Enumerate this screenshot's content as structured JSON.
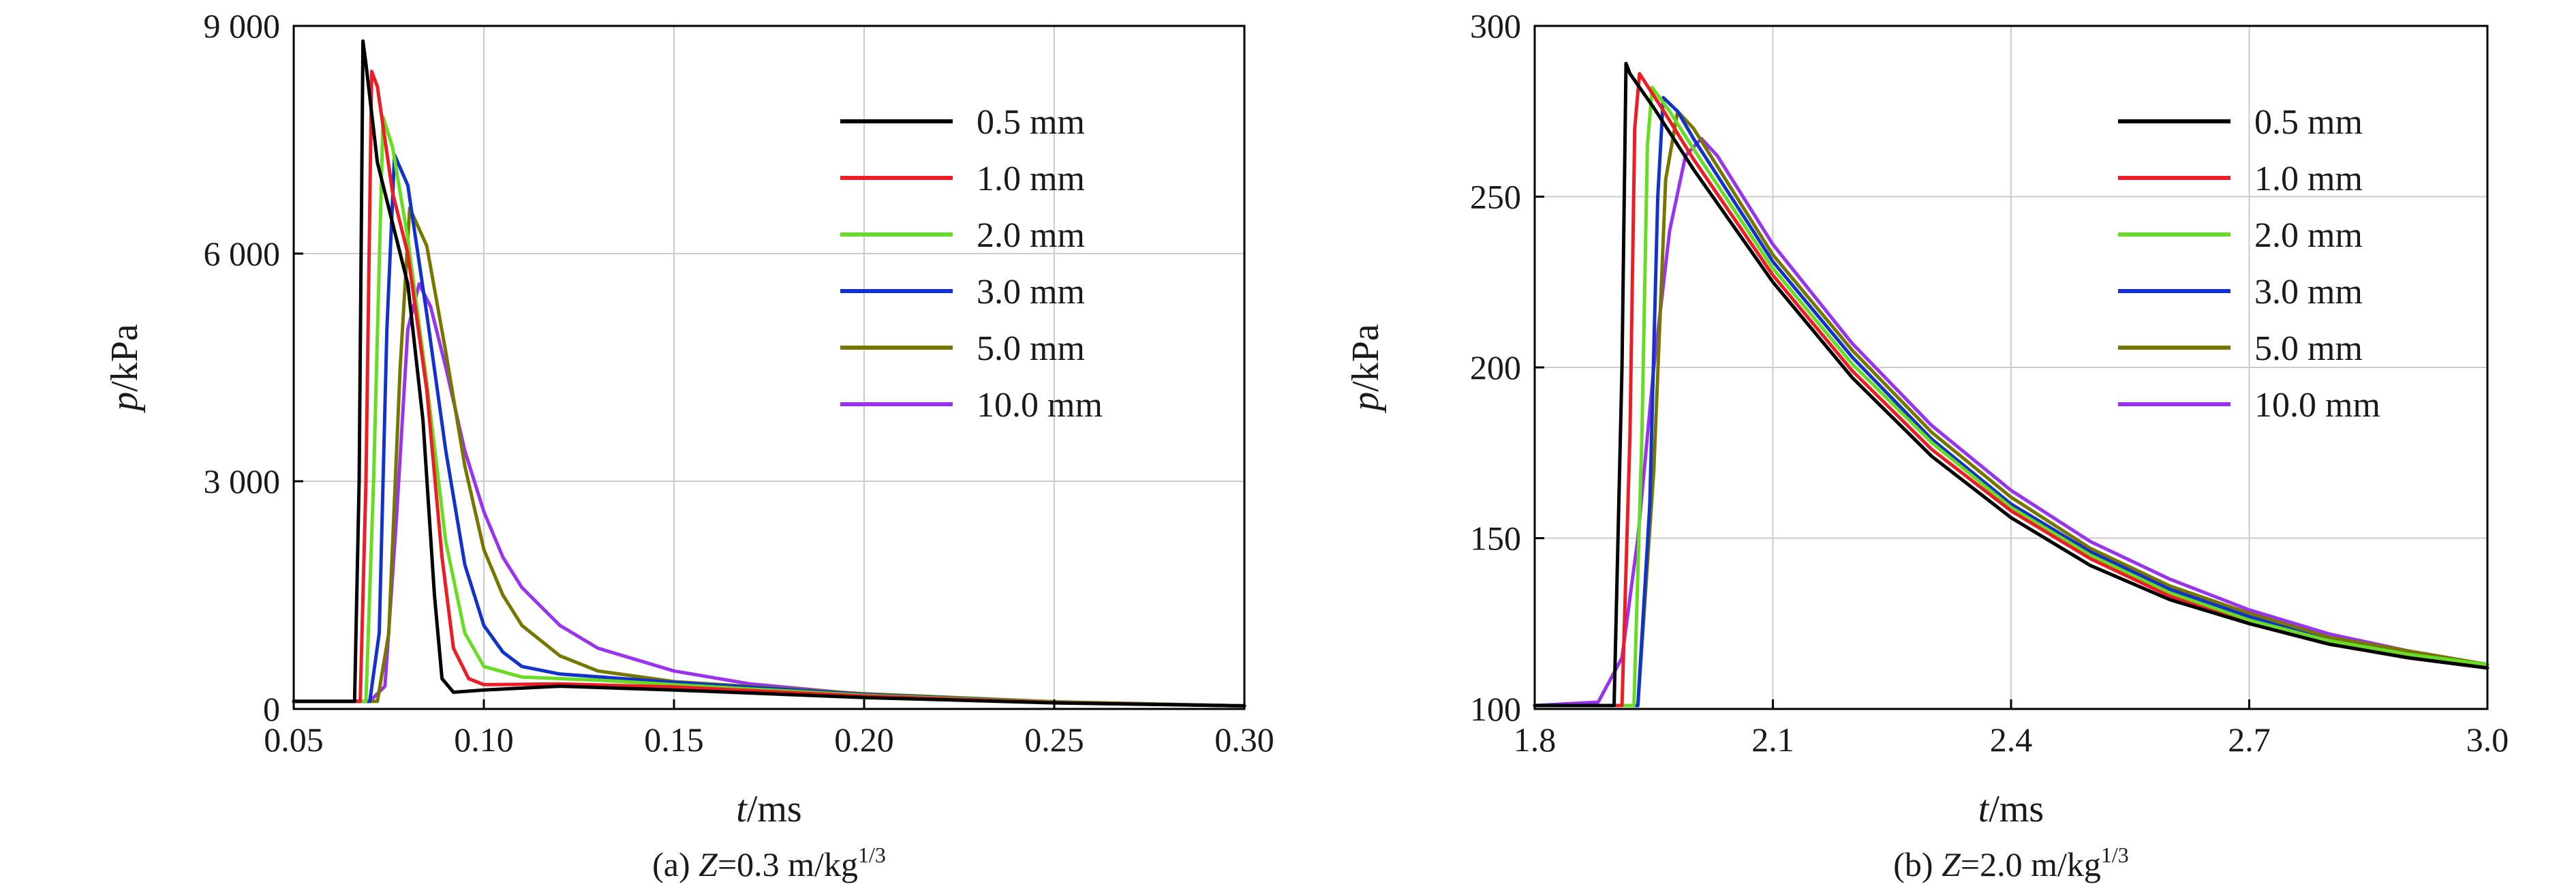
{
  "legend_labels": [
    "0.5 mm",
    "1.0 mm",
    "2.0 mm",
    "3.0 mm",
    "5.0 mm",
    "10.0 mm"
  ],
  "series_colors": [
    "#000000",
    "#ee1c25",
    "#66dd22",
    "#1133cc",
    "#777700",
    "#9933ee"
  ],
  "chart_data": [
    {
      "type": "line",
      "caption": {
        "prefix": "(a) ",
        "var": "Z",
        "value": "=0.3 m/kg",
        "exp": "1/3"
      },
      "xlabel": {
        "var": "t",
        "unit": "/ms"
      },
      "ylabel": {
        "var": "p",
        "unit": "/kPa"
      },
      "xlim": [
        0.05,
        0.3
      ],
      "ylim": [
        0,
        9000
      ],
      "xticks": [
        0.05,
        0.1,
        0.15,
        0.2,
        0.25,
        0.3
      ],
      "xtick_labels": [
        "0.05",
        "0.10",
        "0.15",
        "0.20",
        "0.25",
        "0.30"
      ],
      "yticks": [
        0,
        3000,
        6000,
        9000
      ],
      "ytick_labels": [
        "0",
        "3 000",
        "6 000",
        "9 000"
      ],
      "grid": true,
      "legend_position": "top-right",
      "series": [
        {
          "name": "0.5 mm",
          "x": [
            0.05,
            0.066,
            0.0672,
            0.0682,
            0.069,
            0.072,
            0.076,
            0.08,
            0.084,
            0.087,
            0.089,
            0.092,
            0.1,
            0.12,
            0.15,
            0.2,
            0.25,
            0.3
          ],
          "y": [
            100,
            100,
            3000,
            8800,
            8500,
            7200,
            6400,
            5600,
            3800,
            1500,
            400,
            220,
            250,
            300,
            250,
            150,
            80,
            40
          ]
        },
        {
          "name": "1.0 mm",
          "x": [
            0.05,
            0.0675,
            0.069,
            0.0705,
            0.072,
            0.076,
            0.08,
            0.085,
            0.089,
            0.092,
            0.096,
            0.1,
            0.12,
            0.15,
            0.2,
            0.25,
            0.3
          ],
          "y": [
            100,
            100,
            3000,
            8400,
            8200,
            6800,
            6000,
            4200,
            2000,
            800,
            400,
            320,
            330,
            290,
            170,
            85,
            40
          ]
        },
        {
          "name": "2.0 mm",
          "x": [
            0.05,
            0.069,
            0.071,
            0.0735,
            0.076,
            0.08,
            0.085,
            0.09,
            0.095,
            0.1,
            0.11,
            0.13,
            0.15,
            0.2,
            0.25,
            0.3
          ],
          "y": [
            100,
            100,
            3000,
            7800,
            7400,
            6200,
            4300,
            2200,
            1000,
            560,
            420,
            380,
            320,
            180,
            90,
            40
          ]
        },
        {
          "name": "3.0 mm",
          "x": [
            0.05,
            0.07,
            0.0725,
            0.0745,
            0.0765,
            0.08,
            0.085,
            0.09,
            0.095,
            0.1,
            0.105,
            0.11,
            0.12,
            0.15,
            0.2,
            0.25,
            0.3
          ],
          "y": [
            100,
            100,
            1000,
            5000,
            7300,
            6900,
            5200,
            3400,
            1900,
            1100,
            750,
            560,
            460,
            350,
            190,
            90,
            40
          ]
        },
        {
          "name": "5.0 mm",
          "x": [
            0.05,
            0.072,
            0.075,
            0.078,
            0.0805,
            0.085,
            0.09,
            0.095,
            0.1,
            0.105,
            0.11,
            0.12,
            0.13,
            0.15,
            0.2,
            0.25,
            0.3
          ],
          "y": [
            100,
            100,
            1000,
            4500,
            6600,
            6100,
            4700,
            3200,
            2100,
            1500,
            1100,
            700,
            500,
            360,
            200,
            95,
            40
          ]
        },
        {
          "name": "10.0 mm",
          "x": [
            0.05,
            0.07,
            0.074,
            0.077,
            0.08,
            0.083,
            0.086,
            0.09,
            0.095,
            0.1,
            0.105,
            0.11,
            0.12,
            0.13,
            0.15,
            0.17,
            0.2,
            0.25,
            0.3
          ],
          "y": [
            100,
            100,
            300,
            2500,
            5000,
            5600,
            5300,
            4500,
            3400,
            2600,
            2000,
            1600,
            1100,
            800,
            500,
            330,
            190,
            90,
            40
          ]
        }
      ]
    },
    {
      "type": "line",
      "caption": {
        "prefix": "(b) ",
        "var": "Z",
        "value": "=2.0 m/kg",
        "exp": "1/3"
      },
      "xlabel": {
        "var": "t",
        "unit": "/ms"
      },
      "ylabel": {
        "var": "p",
        "unit": "/kPa"
      },
      "xlim": [
        1.8,
        3.0
      ],
      "ylim": [
        100,
        300
      ],
      "xticks": [
        1.8,
        2.1,
        2.4,
        2.7,
        3.0
      ],
      "xtick_labels": [
        "1.8",
        "2.1",
        "2.4",
        "2.7",
        "3.0"
      ],
      "yticks": [
        100,
        150,
        200,
        250,
        300
      ],
      "ytick_labels": [
        "100",
        "150",
        "200",
        "250",
        "300"
      ],
      "grid": true,
      "legend_position": "top-right",
      "series": [
        {
          "name": "0.5 mm",
          "x": [
            1.8,
            1.9,
            1.91,
            1.915,
            1.92,
            1.95,
            2.0,
            2.1,
            2.2,
            2.3,
            2.4,
            2.5,
            2.6,
            2.7,
            2.8,
            2.9,
            3.0
          ],
          "y": [
            101,
            101,
            200,
            289,
            286,
            276,
            258,
            225,
            197,
            174,
            156,
            142,
            132,
            125,
            119,
            115,
            112
          ]
        },
        {
          "name": "1.0 mm",
          "x": [
            1.8,
            1.91,
            1.92,
            1.926,
            1.932,
            1.96,
            2.0,
            2.1,
            2.2,
            2.3,
            2.4,
            2.5,
            2.6,
            2.7,
            2.8,
            2.9,
            3.0
          ],
          "y": [
            101,
            101,
            180,
            270,
            286,
            276,
            261,
            227,
            199,
            176,
            158,
            144,
            133,
            125,
            119,
            115,
            112
          ]
        },
        {
          "name": "2.0 mm",
          "x": [
            1.8,
            1.925,
            1.935,
            1.942,
            1.948,
            1.97,
            2.0,
            2.1,
            2.2,
            2.3,
            2.4,
            2.5,
            2.6,
            2.7,
            2.8,
            2.9,
            3.0
          ],
          "y": [
            101,
            101,
            180,
            265,
            282,
            275,
            264,
            229,
            201,
            178,
            159,
            145,
            134,
            126,
            120,
            116,
            113
          ]
        },
        {
          "name": "3.0 mm",
          "x": [
            1.8,
            1.93,
            1.945,
            1.955,
            1.962,
            1.98,
            2.0,
            2.1,
            2.2,
            2.3,
            2.4,
            2.5,
            2.6,
            2.7,
            2.8,
            2.9,
            3.0
          ],
          "y": [
            101,
            101,
            160,
            250,
            279,
            275,
            267,
            231,
            203,
            179,
            160,
            146,
            135,
            127,
            120,
            116,
            113
          ]
        },
        {
          "name": "5.0 mm",
          "x": [
            1.8,
            1.93,
            1.95,
            1.965,
            1.98,
            2.0,
            2.1,
            2.2,
            2.3,
            2.4,
            2.5,
            2.6,
            2.7,
            2.8,
            2.9,
            3.0
          ],
          "y": [
            101,
            101,
            170,
            255,
            275,
            270,
            233,
            205,
            181,
            162,
            147,
            136,
            128,
            121,
            117,
            113
          ]
        },
        {
          "name": "10.0 mm",
          "x": [
            1.8,
            1.88,
            1.91,
            1.93,
            1.95,
            1.97,
            1.99,
            2.01,
            2.03,
            2.1,
            2.2,
            2.3,
            2.4,
            2.5,
            2.6,
            2.7,
            2.8,
            2.9,
            3.0
          ],
          "y": [
            101,
            102,
            115,
            150,
            200,
            240,
            262,
            267,
            262,
            236,
            207,
            183,
            164,
            149,
            138,
            129,
            122,
            117,
            113
          ]
        }
      ]
    }
  ]
}
